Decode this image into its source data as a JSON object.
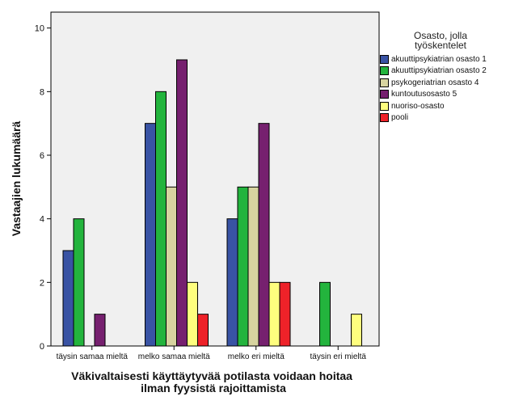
{
  "chart_data": {
    "type": "bar",
    "title": "",
    "xlabel": "Väkivaltaisesti käyttäytyvää potilasta voidaan hoitaa ilman fyysistä rajoittamista",
    "xlabel_lines": [
      "Väkivaltaisesti käyttäytyvää potilasta voidaan hoitaa",
      "ilman fyysistä rajoittamista"
    ],
    "ylabel": "Vastaajien lukumäärä",
    "ylim": [
      0,
      10.5
    ],
    "yticks": [
      0,
      2,
      4,
      6,
      8,
      10
    ],
    "categories": [
      "täysin samaa mieltä",
      "melko samaa mieltä",
      "melko eri mieltä",
      "täysin eri mieltä"
    ],
    "legend_title_lines": [
      "Osasto, jolla",
      "työskentelet"
    ],
    "series": [
      {
        "name": "akuuttipsykiatrian osasto 1",
        "color": "#3953a4",
        "values": [
          3,
          7,
          4,
          0
        ]
      },
      {
        "name": "akuuttipsykiatrian osasto 2",
        "color": "#23b43d",
        "values": [
          4,
          8,
          5,
          2
        ]
      },
      {
        "name": "psykogeriatrian osasto 4",
        "color": "#d7d4a0",
        "values": [
          0,
          5,
          5,
          0
        ]
      },
      {
        "name": "kuntoutusosasto 5",
        "color": "#76206f",
        "values": [
          1,
          9,
          7,
          0
        ]
      },
      {
        "name": "nuoriso-osasto",
        "color": "#fefe7e",
        "values": [
          0,
          2,
          2,
          1
        ]
      },
      {
        "name": "pooli",
        "color": "#ee2229",
        "values": [
          0,
          1,
          2,
          0
        ]
      }
    ]
  }
}
